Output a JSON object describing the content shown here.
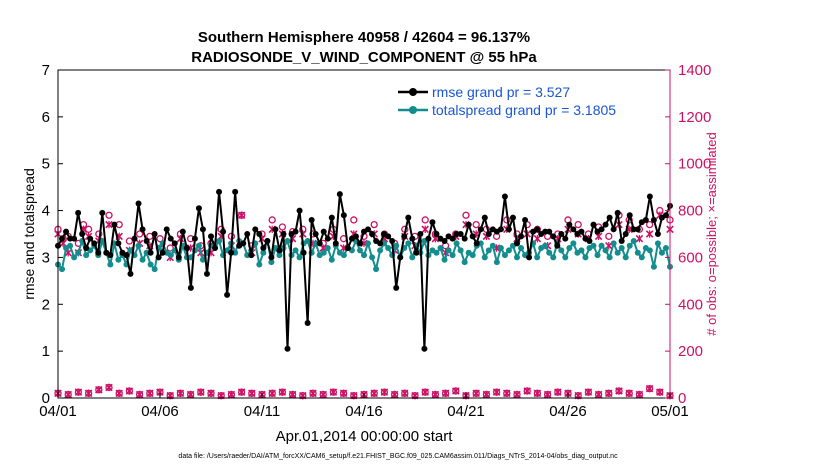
{
  "colors": {
    "rmse": "#000000",
    "spread": "#138d8d",
    "obs": "#cc1166",
    "legend_text": "#1a55d6",
    "axis": "#000000"
  },
  "chart_data": {
    "type": "line",
    "title": "Southern Hemisphere 40958 / 42604 = 96.137%",
    "subtitle": "RADIOSONDE_V_WIND_COMPONENT @ 55 hPa",
    "xlabel": "Apr.01,2014 00:00:00 start",
    "ylabel_left": "rmse and totalspread",
    "ylabel_right": "# of obs: o=possible; ×=assimilated",
    "footnote": "data file: /Users/raeder/DAI/ATM_forcXX/CAM6_setup/f.e21.FHIST_BGC.f09_025.CAM6assim.011/Diags_NTrS_2014-04/obs_diag_output.nc",
    "x_ticks": [
      "04/01",
      "04/06",
      "04/11",
      "04/16",
      "04/21",
      "04/26",
      "05/01"
    ],
    "xlim": [
      0,
      30
    ],
    "ylim_left": [
      0,
      7
    ],
    "ylim_right": [
      0,
      1400
    ],
    "y_ticks_left": [
      0,
      1,
      2,
      3,
      4,
      5,
      6,
      7
    ],
    "y_ticks_right": [
      0,
      200,
      400,
      600,
      800,
      1000,
      1200,
      1400
    ],
    "legend": [
      "rmse grand pr = 3.527",
      "totalspread grand pr = 3.1805"
    ],
    "legend_position": "top-right",
    "grid": false,
    "series": [
      {
        "name": "rmse grand pr = 3.527",
        "axis": "left",
        "style": "line-dot",
        "values": [
          3.25,
          3.4,
          3.55,
          3.4,
          3.4,
          3.95,
          3.5,
          3.2,
          3.4,
          3.3,
          3.1,
          3.95,
          3.1,
          3.05,
          3.7,
          3.3,
          3.1,
          3.05,
          2.65,
          3.4,
          4.15,
          3.6,
          3.35,
          3.1,
          3.5,
          3.0,
          3.1,
          3.6,
          3.4,
          3.3,
          3.0,
          3.55,
          3.2,
          2.35,
          3.4,
          4.05,
          3.6,
          2.65,
          3.45,
          3.2,
          4.4,
          3.55,
          2.2,
          3.1,
          4.4,
          3.25,
          3.3,
          3.5,
          3.05,
          3.6,
          3.5,
          3.2,
          3.35,
          3.0,
          3.6,
          3.15,
          3.5,
          1.05,
          3.5,
          3.55,
          4.0,
          3.1,
          1.6,
          3.8,
          3.5,
          3.3,
          3.55,
          3.4,
          3.85,
          3.3,
          4.35,
          3.9,
          3.2,
          3.4,
          3.45,
          3.3,
          3.55,
          3.6,
          3.5,
          3.35,
          3.3,
          3.5,
          3.45,
          3.35,
          2.35,
          3.0,
          3.45,
          3.85,
          3.4,
          3.1,
          3.5,
          1.05,
          3.4,
          3.75,
          3.5,
          3.4,
          3.35,
          3.45,
          3.4,
          3.5,
          3.5,
          3.4,
          3.7,
          3.45,
          3.3,
          3.6,
          3.85,
          3.5,
          3.6,
          3.55,
          3.6,
          4.3,
          3.6,
          3.85,
          3.3,
          3.45,
          3.8,
          3.0,
          3.55,
          3.6,
          3.5,
          3.55,
          3.55,
          3.45,
          3.25,
          3.5,
          3.4,
          3.7,
          3.6,
          3.5,
          3.55,
          3.4,
          3.35,
          3.7,
          3.55,
          3.6,
          3.7,
          3.85,
          3.6,
          3.95,
          3.35,
          3.5,
          3.9,
          3.6,
          3.6,
          3.75,
          3.8,
          4.3,
          3.8,
          3.5,
          3.85,
          3.9,
          4.1
        ]
      },
      {
        "name": "totalspread grand pr = 3.1805",
        "axis": "left",
        "style": "line-dot",
        "values": [
          2.85,
          2.75,
          3.2,
          3.25,
          3.0,
          3.1,
          3.35,
          3.05,
          3.15,
          3.25,
          3.05,
          3.35,
          3.1,
          2.85,
          3.3,
          2.95,
          3.05,
          2.85,
          3.15,
          3.05,
          3.25,
          2.95,
          3.1,
          2.85,
          2.75,
          3.2,
          3.3,
          3.1,
          3.05,
          3.15,
          2.95,
          3.25,
          3.0,
          3.0,
          3.15,
          3.25,
          2.95,
          3.1,
          3.25,
          3.2,
          3.35,
          3.05,
          3.15,
          3.3,
          3.1,
          3.35,
          3.3,
          3.05,
          3.15,
          3.3,
          2.85,
          3.1,
          3.35,
          2.9,
          3.2,
          3.05,
          3.2,
          3.35,
          3.05,
          3.15,
          3.0,
          3.3,
          3.35,
          3.1,
          3.3,
          3.05,
          3.1,
          3.2,
          2.95,
          3.25,
          3.1,
          3.05,
          3.2,
          3.15,
          3.35,
          3.15,
          3.05,
          3.3,
          3.0,
          2.75,
          3.15,
          3.3,
          3.2,
          3.05,
          3.25,
          3.0,
          3.2,
          3.3,
          3.0,
          3.25,
          3.1,
          3.35,
          3.05,
          3.15,
          3.1,
          3.2,
          2.95,
          3.15,
          3.05,
          3.3,
          3.15,
          2.9,
          3.1,
          3.05,
          3.25,
          3.3,
          3.0,
          3.15,
          3.25,
          2.9,
          3.2,
          3.05,
          3.15,
          3.25,
          3.0,
          3.2,
          3.05,
          3.1,
          3.3,
          3.0,
          3.2,
          3.25,
          3.1,
          3.0,
          3.3,
          3.15,
          3.0,
          3.2,
          3.3,
          3.1,
          3.15,
          3.0,
          3.2,
          3.25,
          3.05,
          3.25,
          3.15,
          3.0,
          3.3,
          3.1,
          3.2,
          3.0,
          3.25,
          3.35,
          3.1,
          3.0,
          3.2,
          3.15,
          2.8,
          3.3,
          3.1,
          3.2,
          2.8
        ]
      },
      {
        "name": "obs possible",
        "axis": "right",
        "style": "circle-marker",
        "x": [
          0,
          0.25,
          0.5,
          1,
          1.25,
          1.5,
          2,
          2.5,
          3,
          3.5,
          4,
          4.5,
          5,
          5.5,
          6,
          6.5,
          7,
          7.5,
          8,
          8.5,
          9,
          9.5,
          10,
          10.5,
          11,
          11.5,
          12,
          12.5,
          13,
          13.5,
          14,
          14.5,
          15,
          15.5,
          16,
          16.5,
          17,
          17.5,
          18,
          18.5,
          19,
          19.5,
          20,
          20.5,
          21,
          21.5,
          22,
          22.5,
          23,
          23.5,
          24,
          24.5,
          25,
          25.5,
          26,
          26.5,
          27,
          27.5,
          28,
          28.5,
          29,
          29.5,
          30
        ],
        "values": [
          720,
          680,
          690,
          660,
          740,
          720,
          700,
          780,
          740,
          670,
          700,
          690,
          680,
          640,
          700,
          680,
          650,
          660,
          720,
          690,
          780,
          650,
          700,
          760,
          730,
          710,
          720,
          700,
          660,
          720,
          680,
          760,
          690,
          740,
          700,
          660,
          720,
          690,
          760,
          700,
          650,
          700,
          780,
          740,
          720,
          690,
          760,
          700,
          740,
          720,
          690,
          700,
          760,
          740,
          700,
          730,
          690,
          780,
          760,
          720,
          740,
          800,
          760
        ]
      },
      {
        "name": "obs assimilated",
        "axis": "right",
        "style": "x-marker",
        "x": [
          0,
          0.25,
          0.5,
          1,
          1.25,
          1.5,
          2,
          2.5,
          3,
          3.5,
          4,
          4.5,
          5,
          5.5,
          6,
          6.5,
          7,
          7.5,
          8,
          8.5,
          9,
          9.5,
          10,
          10.5,
          11,
          11.5,
          12,
          12.5,
          13,
          13.5,
          14,
          14.5,
          15,
          15.5,
          16,
          16.5,
          17,
          17.5,
          18,
          18.5,
          19,
          19.5,
          20,
          20.5,
          21,
          21.5,
          22,
          22.5,
          23,
          23.5,
          24,
          24.5,
          25,
          25.5,
          26,
          26.5,
          27,
          27.5,
          28,
          28.5,
          29,
          29.5,
          30
        ],
        "values": [
          700,
          660,
          620,
          620,
          720,
          690,
          670,
          740,
          690,
          630,
          660,
          650,
          640,
          600,
          680,
          640,
          620,
          620,
          690,
          650,
          780,
          620,
          680,
          720,
          700,
          680,
          700,
          660,
          640,
          690,
          640,
          700,
          660,
          700,
          680,
          630,
          690,
          650,
          720,
          680,
          620,
          690,
          740,
          700,
          690,
          640,
          720,
          680,
          700,
          680,
          650,
          680,
          720,
          700,
          680,
          690,
          650,
          740,
          720,
          680,
          700,
          780,
          720
        ]
      },
      {
        "name": "obs possible (rejected)",
        "axis": "right",
        "style": "circle-marker",
        "x": [
          0,
          0.5,
          1,
          1.5,
          2,
          2.5,
          3,
          3.5,
          4,
          4.5,
          5,
          5.5,
          6,
          6.5,
          7,
          7.5,
          8,
          8.5,
          9,
          9.5,
          10,
          10.5,
          11,
          11.5,
          12,
          12.5,
          13,
          13.5,
          14,
          14.5,
          15,
          15.5,
          16,
          16.5,
          17,
          17.5,
          18,
          18.5,
          19,
          19.5,
          20,
          20.5,
          21,
          21.5,
          22,
          22.5,
          23,
          23.5,
          24,
          24.5,
          25,
          25.5,
          26,
          26.5,
          27,
          27.5,
          28,
          28.5,
          29,
          29.5,
          30
        ],
        "values": [
          20,
          15,
          25,
          20,
          35,
          45,
          20,
          30,
          15,
          20,
          25,
          10,
          20,
          15,
          25,
          20,
          10,
          15,
          25,
          20,
          15,
          20,
          25,
          15,
          10,
          20,
          15,
          25,
          20,
          10,
          15,
          20,
          25,
          15,
          20,
          10,
          25,
          15,
          20,
          30,
          10,
          20,
          15,
          25,
          20,
          15,
          30,
          20,
          15,
          25,
          20,
          10,
          25,
          15,
          20,
          30,
          20,
          15,
          40,
          25,
          10
        ]
      },
      {
        "name": "obs assimilated (rejected)",
        "axis": "right",
        "style": "x-marker",
        "x": [
          0,
          0.5,
          1,
          1.5,
          2,
          2.5,
          3,
          3.5,
          4,
          4.5,
          5,
          5.5,
          6,
          6.5,
          7,
          7.5,
          8,
          8.5,
          9,
          9.5,
          10,
          10.5,
          11,
          11.5,
          12,
          12.5,
          13,
          13.5,
          14,
          14.5,
          15,
          15.5,
          16,
          16.5,
          17,
          17.5,
          18,
          18.5,
          19,
          19.5,
          20,
          20.5,
          21,
          21.5,
          22,
          22.5,
          23,
          23.5,
          24,
          24.5,
          25,
          25.5,
          26,
          26.5,
          27,
          27.5,
          28,
          28.5,
          29,
          29.5,
          30
        ],
        "values": [
          20,
          15,
          25,
          20,
          35,
          45,
          20,
          30,
          15,
          20,
          25,
          10,
          20,
          15,
          25,
          20,
          10,
          15,
          25,
          20,
          15,
          20,
          25,
          15,
          10,
          20,
          15,
          25,
          20,
          10,
          15,
          20,
          25,
          15,
          20,
          10,
          25,
          15,
          20,
          30,
          10,
          20,
          15,
          25,
          20,
          15,
          30,
          20,
          15,
          25,
          20,
          10,
          25,
          15,
          20,
          30,
          20,
          15,
          40,
          25,
          10
        ]
      }
    ]
  }
}
